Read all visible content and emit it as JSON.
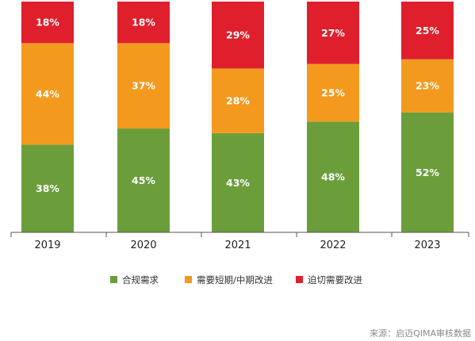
{
  "chart_data": {
    "type": "bar",
    "stacked": true,
    "categories": [
      "2019",
      "2020",
      "2021",
      "2022",
      "2023"
    ],
    "series": [
      {
        "name": "合规需求",
        "values": [
          38,
          45,
          43,
          48,
          52
        ],
        "color": "#6b9e3a"
      },
      {
        "name": "需要短期/中期改进",
        "values": [
          44,
          37,
          28,
          25,
          23
        ],
        "color": "#f39a1e"
      },
      {
        "name": "迫切需要改进",
        "values": [
          18,
          18,
          29,
          27,
          25
        ],
        "color": "#e01f2d"
      }
    ],
    "value_suffix": "%",
    "ylim": [
      0,
      100
    ],
    "legend_position": "bottom",
    "grid": false
  },
  "source": "来源：启迈QIMA审核数据"
}
